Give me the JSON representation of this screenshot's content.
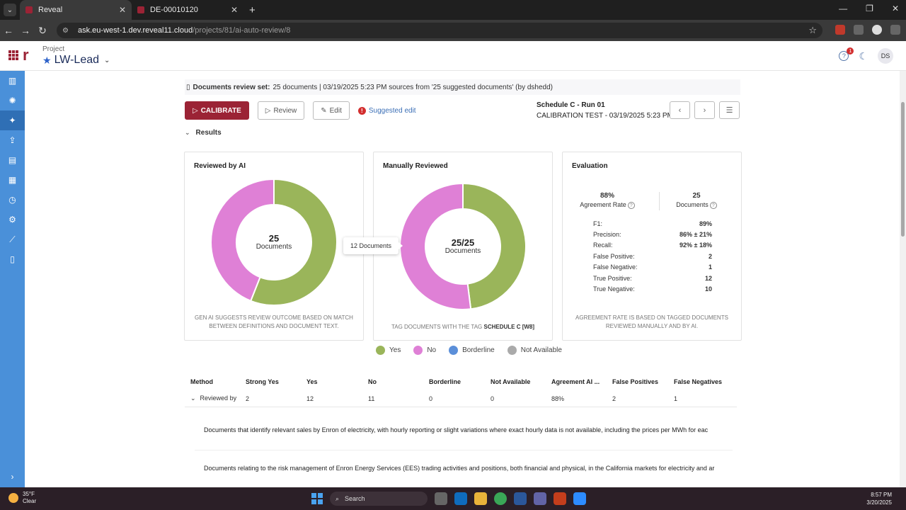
{
  "browser": {
    "tabs": [
      {
        "label": "Reveal",
        "active": true
      },
      {
        "label": "DE-00010120",
        "active": false
      }
    ],
    "url_host": "ask.eu-west-1.dev.reveal11.cloud",
    "url_path": "/projects/81/ai-auto-review/8"
  },
  "header": {
    "project_label": "Project",
    "project_name": "LW-Lead",
    "help_badge": "1",
    "avatar_initials": "DS"
  },
  "review_set": {
    "label": "Documents review set:",
    "text": "25 documents | 03/19/2025 5:23 PM sources from '25 suggested documents' (by dshedd)"
  },
  "toolbar": {
    "calibrate": "CALIBRATE",
    "review": "Review",
    "edit": "Edit",
    "suggested_edit": "Suggested edit"
  },
  "run": {
    "title": "Schedule C - Run 01",
    "subtitle": "CALIBRATION TEST - 03/19/2025 5:23 PM"
  },
  "results_label": "Results",
  "colors": {
    "yes": "#9ab55a",
    "no": "#df80d6",
    "borderline": "#5b8fd9",
    "not_available": "#aaaaaa",
    "brand": "#9b2335"
  },
  "cards": {
    "ai": {
      "title": "Reviewed by AI",
      "center_value": "25",
      "center_label": "Documents",
      "footer": "GEN AI SUGGESTS REVIEW OUTCOME BASED ON MATCH BETWEEN DEFINITIONS AND DOCUMENT TEXT."
    },
    "manual": {
      "title": "Manually Reviewed",
      "center_value": "25/25",
      "center_label": "Documents",
      "footer_prefix": "TAG DOCUMENTS WITH THE TAG",
      "footer_tag": "SCHEDULE C [W8]"
    },
    "evaluation": {
      "title": "Evaluation",
      "agreement_value": "88%",
      "agreement_label": "Agreement Rate",
      "documents_value": "25",
      "documents_label": "Documents",
      "metrics": [
        {
          "label": "F1:",
          "value": "89%"
        },
        {
          "label": "Precision:",
          "value": "86% ± 21%"
        },
        {
          "label": "Recall:",
          "value": "92% ± 18%"
        },
        {
          "label": "False Positive:",
          "value": "2"
        },
        {
          "label": "False Negative:",
          "value": "1"
        },
        {
          "label": "True Positive:",
          "value": "12"
        },
        {
          "label": "True Negative:",
          "value": "10"
        }
      ],
      "footer": "AGREEMENT RATE IS BASED ON TAGGED DOCUMENTS REVIEWED MANUALLY AND BY AI."
    }
  },
  "tooltip": "12 Documents",
  "chart_data": [
    {
      "type": "pie",
      "labels": [
        "Yes",
        "No"
      ],
      "values": [
        14,
        11
      ]
    },
    {
      "type": "pie",
      "labels": [
        "Yes",
        "No"
      ],
      "values": [
        12,
        13
      ]
    }
  ],
  "legend": [
    "Yes",
    "No",
    "Borderline",
    "Not Available"
  ],
  "table": {
    "headers": [
      "Method",
      "Strong Yes",
      "Yes",
      "No",
      "Borderline",
      "Not Available",
      "Agreement AI ...",
      "False Positives",
      "False Negatives"
    ],
    "row": [
      "Reviewed by",
      "2",
      "12",
      "11",
      "0",
      "0",
      "88%",
      "2",
      "1"
    ]
  },
  "descriptions": [
    "Documents that identify relevant sales by Enron of electricity, with hourly reporting or slight variations where exact hourly data is not available, including the prices per MWh for eac",
    "Documents relating to the risk management of Enron Energy Services (EES) trading activities and positions, both financial and physical, in the California markets for electricity and ar"
  ],
  "taskbar": {
    "temp": "35°F",
    "condition": "Clear",
    "search": "Search",
    "time": "8:57 PM",
    "date": "3/20/2025"
  }
}
